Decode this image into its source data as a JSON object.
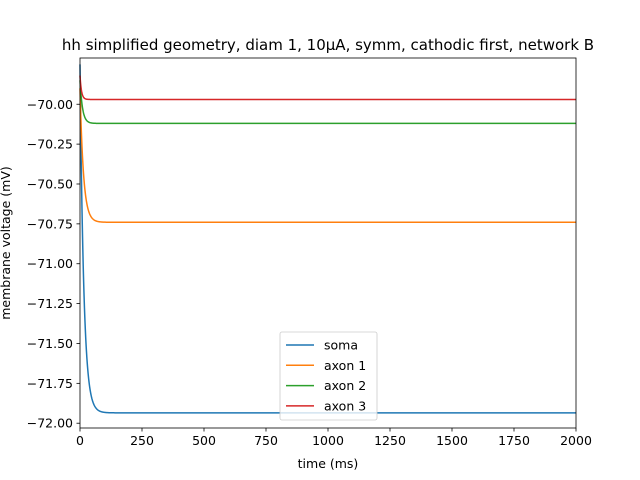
{
  "chart_data": {
    "type": "line",
    "title": "hh simplified geometry, diam 1, 10μA, symm, cathodic first, network B",
    "xlabel": "time (ms)",
    "ylabel": "membrane voltage (mV)",
    "xlim": [
      0,
      2000
    ],
    "ylim": [
      -72.03,
      -69.71
    ],
    "xticks": [
      0,
      250,
      500,
      750,
      1000,
      1250,
      1500,
      1750,
      2000
    ],
    "xtick_labels": [
      "0",
      "250",
      "500",
      "750",
      "1000",
      "1250",
      "1500",
      "1750",
      "2000"
    ],
    "yticks": [
      -72.0,
      -71.75,
      -71.5,
      -71.25,
      -71.0,
      -70.75,
      -70.5,
      -70.25,
      -70.0
    ],
    "ytick_labels": [
      "−72.00",
      "−71.75",
      "−71.50",
      "−71.25",
      "−71.00",
      "−70.75",
      "−70.50",
      "−70.25",
      "−70.00"
    ],
    "grid": false,
    "legend_position": "lower center",
    "series": [
      {
        "name": "soma",
        "color": "#1f77b4",
        "start": -69.75,
        "end": -71.935,
        "tau_ms": 15
      },
      {
        "name": "axon 1",
        "color": "#ff7f0e",
        "start": -69.9,
        "end": -70.74,
        "tau_ms": 14
      },
      {
        "name": "axon 2",
        "color": "#2ca02c",
        "start": -69.85,
        "end": -70.12,
        "tau_ms": 10
      },
      {
        "name": "axon 3",
        "color": "#d62728",
        "start": -69.82,
        "end": -69.97,
        "tau_ms": 6
      }
    ]
  }
}
